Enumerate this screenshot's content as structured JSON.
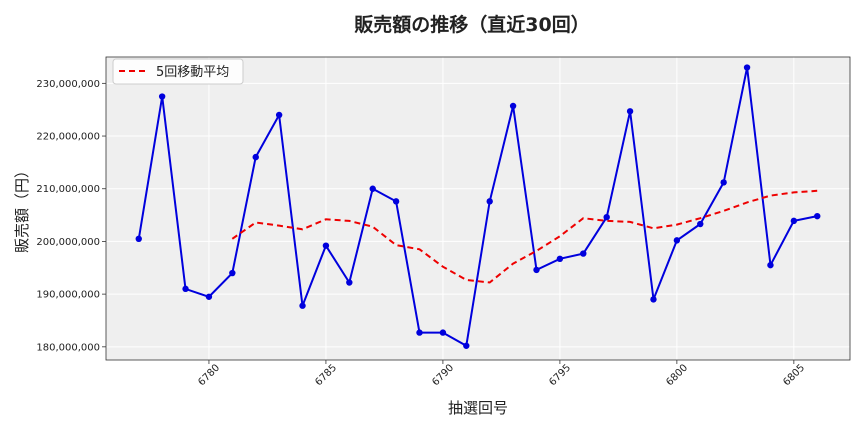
{
  "chart_data": {
    "type": "line",
    "title": "販売額の推移（直近30回）",
    "xlabel": "抽選回号",
    "ylabel": "販売額（円）",
    "xlim": [
      6775.6,
      6807.4
    ],
    "ylim": [
      177500000,
      235000000
    ],
    "grid": true,
    "legend_position": "top-left",
    "x_ticks": [
      6780,
      6785,
      6790,
      6795,
      6800,
      6805
    ],
    "x_tick_labels": [
      "6780",
      "6785",
      "6790",
      "6795",
      "6800",
      "6805"
    ],
    "y_ticks": [
      180000000,
      190000000,
      200000000,
      210000000,
      220000000,
      230000000
    ],
    "y_tick_labels": [
      "180,000,000",
      "190,000,000",
      "200,000,000",
      "210,000,000",
      "220,000,000",
      "230,000,000"
    ],
    "x": [
      6777,
      6778,
      6779,
      6780,
      6781,
      6782,
      6783,
      6784,
      6785,
      6786,
      6787,
      6788,
      6789,
      6790,
      6791,
      6792,
      6793,
      6794,
      6795,
      6796,
      6797,
      6798,
      6799,
      6800,
      6801,
      6802,
      6803,
      6804,
      6805,
      6806
    ],
    "series": [
      {
        "values": [
          200500000,
          227500000,
          191000000,
          189500000,
          194000000,
          216000000,
          224000000,
          187800000,
          199200000,
          192200000,
          210000000,
          207600000,
          182700000,
          182700000,
          180200000,
          207600000,
          225700000,
          194600000,
          196700000,
          197700000,
          204600000,
          224700000,
          189000000,
          200200000,
          203300000,
          211200000,
          233000000,
          195500000,
          203900000,
          204800000
        ],
        "color": "#0000dd",
        "style": "solid",
        "markers": true
      },
      {
        "name": "5回移動平均",
        "values": [
          null,
          null,
          null,
          null,
          200500000,
          203600000,
          203000000,
          202300000,
          204200000,
          203900000,
          202800000,
          199300000,
          198500000,
          195200000,
          192700000,
          192200000,
          195800000,
          198200000,
          201000000,
          204400000,
          203900000,
          203700000,
          202500000,
          203200000,
          204400000,
          205800000,
          207400000,
          208700000,
          209300000,
          209600000
        ],
        "color": "#ee0000",
        "style": "dashed",
        "markers": false
      }
    ]
  }
}
